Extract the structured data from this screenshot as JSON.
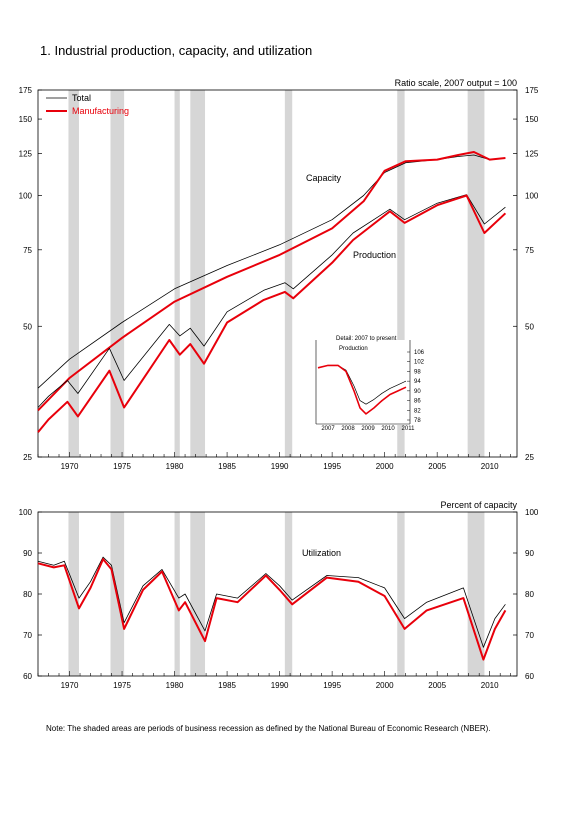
{
  "title": "1.  Industrial production, capacity, and utilization",
  "note": "Note: The shaded areas are periods of business recession as defined by the National Bureau of Economic Research (NBER).",
  "colors": {
    "total": "#000000",
    "manufacturing": "#e8000b",
    "recession": "#d6d6d6"
  },
  "recessions": [
    [
      1969.9,
      1970.9
    ],
    [
      1973.9,
      1975.2
    ],
    [
      1980.0,
      1980.5
    ],
    [
      1981.5,
      1982.9
    ],
    [
      1990.5,
      1991.2
    ],
    [
      2001.2,
      2001.9
    ],
    [
      2007.9,
      2009.5
    ]
  ],
  "chart_data": [
    {
      "type": "line",
      "name": "upper",
      "subtitle": "Ratio scale, 2007 output = 100",
      "yscale": "log",
      "ylim": [
        25,
        175
      ],
      "xlim": [
        1967,
        2012.6
      ],
      "yticks": [
        25,
        50,
        75,
        100,
        125,
        150,
        175
      ],
      "xticks": [
        1970,
        1975,
        1980,
        1985,
        1990,
        1995,
        2000,
        2005,
        2010
      ],
      "legend": {
        "placement": "top-left",
        "entries": [
          "Total",
          "Manufacturing"
        ]
      },
      "annotations": [
        "Capacity",
        "Production"
      ],
      "series": [
        {
          "name": "Total",
          "group": "Capacity",
          "x": [
            1967,
            1970,
            1975,
            1980,
            1985,
            1990,
            1995,
            1998,
            2000,
            2002,
            2005,
            2007,
            2008.5,
            2010,
            2011.5
          ],
          "y": [
            36,
            42,
            51,
            61,
            69,
            77,
            88,
            100,
            113,
            119,
            121,
            123,
            124,
            121,
            122
          ]
        },
        {
          "name": "Manufacturing",
          "group": "Capacity",
          "x": [
            1967,
            1970,
            1975,
            1980,
            1985,
            1990,
            1995,
            1998,
            2000,
            2002,
            2005,
            2007,
            2008.5,
            2010,
            2011.5
          ],
          "y": [
            32,
            38,
            47,
            57,
            65,
            73,
            84,
            97,
            114,
            120,
            121,
            124,
            126,
            121,
            122
          ]
        },
        {
          "name": "Total",
          "group": "Production",
          "x": [
            1967,
            1968,
            1969.8,
            1970.8,
            1973.8,
            1975.2,
            1979.5,
            1980.5,
            1981.5,
            1982.8,
            1985,
            1988.5,
            1990.5,
            1991.3,
            1995,
            1997,
            2000.5,
            2001.9,
            2005,
            2007.8,
            2009.5,
            2011.5
          ],
          "y": [
            32.5,
            34.5,
            37.5,
            35,
            44.5,
            37.5,
            50.5,
            47.5,
            49.5,
            45,
            54,
            60.5,
            63,
            61,
            73,
            82,
            93,
            88,
            96,
            100.5,
            86,
            94
          ]
        },
        {
          "name": "Manufacturing",
          "group": "Production",
          "x": [
            1967,
            1968,
            1969.8,
            1970.8,
            1973.8,
            1975.2,
            1979.5,
            1980.5,
            1981.5,
            1982.8,
            1985,
            1988.5,
            1990.5,
            1991.3,
            1995,
            1997,
            2000.5,
            2001.9,
            2005,
            2007.8,
            2009.5,
            2011.5
          ],
          "y": [
            28.5,
            30.5,
            33.5,
            31,
            39.5,
            32.5,
            46.5,
            43,
            45.5,
            41,
            51,
            57.5,
            60,
            58,
            70,
            79,
            92,
            86.5,
            95,
            100,
            82,
            91
          ]
        }
      ]
    },
    {
      "type": "line",
      "name": "inset",
      "title": "Detail: 2007 to present",
      "label": "Production",
      "ylim": [
        78,
        106
      ],
      "xlim": [
        2007,
        2011.5
      ],
      "yticks": [
        78,
        82,
        86,
        90,
        94,
        98,
        102,
        106
      ],
      "xticks": [
        2007,
        2008,
        2009,
        2010,
        2011
      ],
      "series": [
        {
          "name": "Total",
          "x": [
            2007,
            2007.5,
            2008,
            2008.4,
            2008.8,
            2009.1,
            2009.4,
            2009.8,
            2010.2,
            2010.6,
            2011,
            2011.4
          ],
          "y": [
            99.5,
            100.5,
            100.5,
            98.5,
            92,
            86,
            84.5,
            86.5,
            89,
            91,
            92.5,
            94
          ]
        },
        {
          "name": "Manufacturing",
          "x": [
            2007,
            2007.5,
            2008,
            2008.4,
            2008.8,
            2009.1,
            2009.4,
            2009.8,
            2010.2,
            2010.6,
            2011,
            2011.4
          ],
          "y": [
            99.5,
            100.5,
            100.5,
            98,
            90,
            83,
            80.5,
            83,
            86,
            88.5,
            90,
            91.5
          ]
        }
      ]
    },
    {
      "type": "line",
      "name": "lower",
      "subtitle": "Percent of capacity",
      "annotation": "Utilization",
      "ylim": [
        60,
        100
      ],
      "xlim": [
        1967,
        2012.6
      ],
      "yticks": [
        60,
        70,
        80,
        90,
        100
      ],
      "xticks": [
        1970,
        1975,
        1980,
        1985,
        1990,
        1995,
        2000,
        2005,
        2010
      ],
      "series": [
        {
          "name": "Total",
          "x": [
            1967,
            1968.5,
            1969.5,
            1970.9,
            1972,
            1973.2,
            1974,
            1975.2,
            1977,
            1978.8,
            1980.4,
            1981,
            1982.9,
            1984,
            1986,
            1988.7,
            1990,
            1991.2,
            1994.5,
            1997.5,
            2000,
            2001.9,
            2004,
            2007.5,
            2009.4,
            2010.5,
            2011.5
          ],
          "y": [
            88,
            87,
            88,
            79,
            83,
            89,
            87,
            73,
            82,
            86,
            79,
            80,
            71,
            80,
            79,
            85,
            82,
            78.5,
            84.5,
            84,
            81.5,
            74,
            78,
            81.5,
            67,
            74,
            77.5
          ]
        },
        {
          "name": "Manufacturing",
          "x": [
            1967,
            1968.5,
            1969.5,
            1970.9,
            1972,
            1973.2,
            1974,
            1975.2,
            1977,
            1978.8,
            1980.4,
            1981,
            1982.9,
            1984,
            1986,
            1988.7,
            1990,
            1991.2,
            1994.5,
            1997.5,
            2000,
            2001.9,
            2004,
            2007.5,
            2009.4,
            2010.5,
            2011.5
          ],
          "y": [
            87.5,
            86.5,
            87,
            76.5,
            81.5,
            88.5,
            86,
            71.5,
            81,
            85.5,
            76,
            78,
            68.5,
            79,
            78,
            84.5,
            81,
            77.5,
            84,
            83,
            79.5,
            71.5,
            76,
            79,
            64,
            71.5,
            76
          ]
        }
      ]
    }
  ]
}
